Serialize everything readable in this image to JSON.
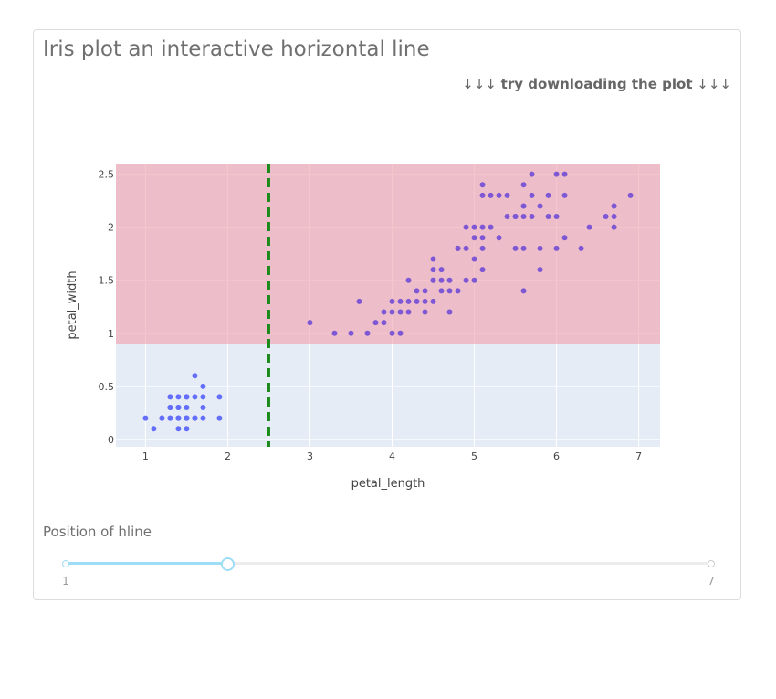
{
  "page": {
    "title": "Iris plot an interactive horizontal line",
    "hint_arrows_left": "↓↓↓",
    "hint_text": "try downloading the plot",
    "hint_arrows_right": "↓↓↓"
  },
  "colors": {
    "plot_bg": "#e5ecf6",
    "band_fill": "#f2a0ac",
    "band_opacity": 0.6,
    "line_color": "#1a8a1a",
    "marker_blue": "#636efa",
    "marker_purple": "#7e57d4",
    "slider_accent": "#9fdcf5"
  },
  "chart_data": {
    "type": "scatter",
    "title": "",
    "xlabel": "petal_length",
    "ylabel": "petal_width",
    "xlim": [
      0.64,
      7.26
    ],
    "ylim": [
      -0.07,
      2.6
    ],
    "xticks": [
      1,
      2,
      3,
      4,
      5,
      6,
      7
    ],
    "yticks": [
      0,
      0.5,
      1,
      1.5,
      2,
      2.5
    ],
    "ytick_labels": [
      "0",
      "0.5",
      "1",
      "1.5",
      "2",
      "2.5"
    ],
    "grid": true,
    "shaded_band": {
      "y0": 0.9,
      "y1": 2.6,
      "color": "#f2a0ac"
    },
    "vertical_line": {
      "x": 2.5,
      "style": "dash",
      "color": "#1a8a1a"
    },
    "series": [
      {
        "color": "#636efa",
        "x": [
          1.0,
          1.1,
          1.2,
          1.4,
          1.4,
          1.5,
          1.5,
          1.6,
          1.6,
          1.7,
          1.9,
          1.3,
          1.3,
          1.4,
          1.5,
          1.6,
          1.7,
          1.9,
          1.3,
          1.4,
          1.5,
          1.6,
          1.7,
          1.2,
          1.3,
          1.4,
          1.5,
          1.6,
          1.7,
          1.5,
          1.6,
          1.3,
          1.4,
          1.5,
          1.4,
          1.5
        ],
        "y": [
          0.2,
          0.1,
          0.2,
          0.1,
          0.2,
          0.1,
          0.2,
          0.2,
          0.6,
          0.5,
          0.4,
          0.4,
          0.3,
          0.3,
          0.4,
          0.4,
          0.3,
          0.2,
          0.2,
          0.4,
          0.3,
          0.2,
          0.4,
          0.2,
          0.2,
          0.2,
          0.2,
          0.2,
          0.2,
          0.2,
          0.2,
          0.3,
          0.2,
          0.2,
          0.3,
          0.4
        ]
      },
      {
        "color": "#7e57d4",
        "x": [
          3.0,
          3.3,
          3.5,
          3.6,
          3.7,
          3.8,
          3.9,
          3.9,
          4.0,
          4.0,
          4.0,
          4.1,
          4.1,
          4.1,
          4.2,
          4.2,
          4.2,
          4.3,
          4.3,
          4.4,
          4.4,
          4.4,
          4.5,
          4.5,
          4.5,
          4.5,
          4.6,
          4.6,
          4.6,
          4.7,
          4.7,
          4.7,
          4.8,
          4.8,
          4.9,
          4.9,
          4.9,
          5.0,
          5.0,
          5.0,
          5.1,
          5.1,
          5.1,
          5.1,
          5.1,
          5.1,
          5.2,
          5.2,
          5.3,
          5.3,
          5.4,
          5.4,
          5.5,
          5.5,
          5.5,
          5.6,
          5.6,
          5.6,
          5.6,
          5.6,
          5.7,
          5.7,
          5.7,
          5.8,
          5.8,
          5.8,
          5.9,
          5.9,
          6.0,
          6.0,
          6.0,
          6.1,
          6.1,
          6.1,
          6.3,
          6.4,
          6.6,
          6.7,
          6.7,
          6.7,
          6.9,
          4.5,
          4.8,
          5.0
        ],
        "y": [
          1.1,
          1.0,
          1.0,
          1.3,
          1.0,
          1.1,
          1.1,
          1.2,
          1.0,
          1.3,
          1.2,
          1.0,
          1.3,
          1.2,
          1.5,
          1.3,
          1.2,
          1.3,
          1.4,
          1.4,
          1.3,
          1.2,
          1.5,
          1.6,
          1.7,
          1.3,
          1.5,
          1.4,
          1.6,
          1.4,
          1.5,
          1.2,
          1.8,
          1.4,
          1.5,
          1.8,
          2.0,
          1.5,
          1.9,
          2.0,
          1.6,
          1.8,
          1.9,
          2.0,
          2.3,
          2.4,
          2.0,
          2.3,
          1.9,
          2.3,
          2.1,
          2.3,
          1.8,
          2.1,
          2.1,
          1.4,
          1.8,
          2.1,
          2.2,
          2.4,
          2.1,
          2.3,
          2.5,
          1.6,
          1.8,
          2.2,
          2.3,
          2.1,
          1.8,
          2.1,
          2.5,
          1.9,
          2.3,
          2.5,
          1.8,
          2.0,
          2.1,
          2.0,
          2.2,
          2.1,
          2.3,
          1.5,
          1.8,
          1.7
        ]
      }
    ]
  },
  "slider": {
    "label": "Position of hline",
    "min": 1,
    "max": 7,
    "value": 2.5,
    "min_label": "1",
    "max_label": "7"
  }
}
